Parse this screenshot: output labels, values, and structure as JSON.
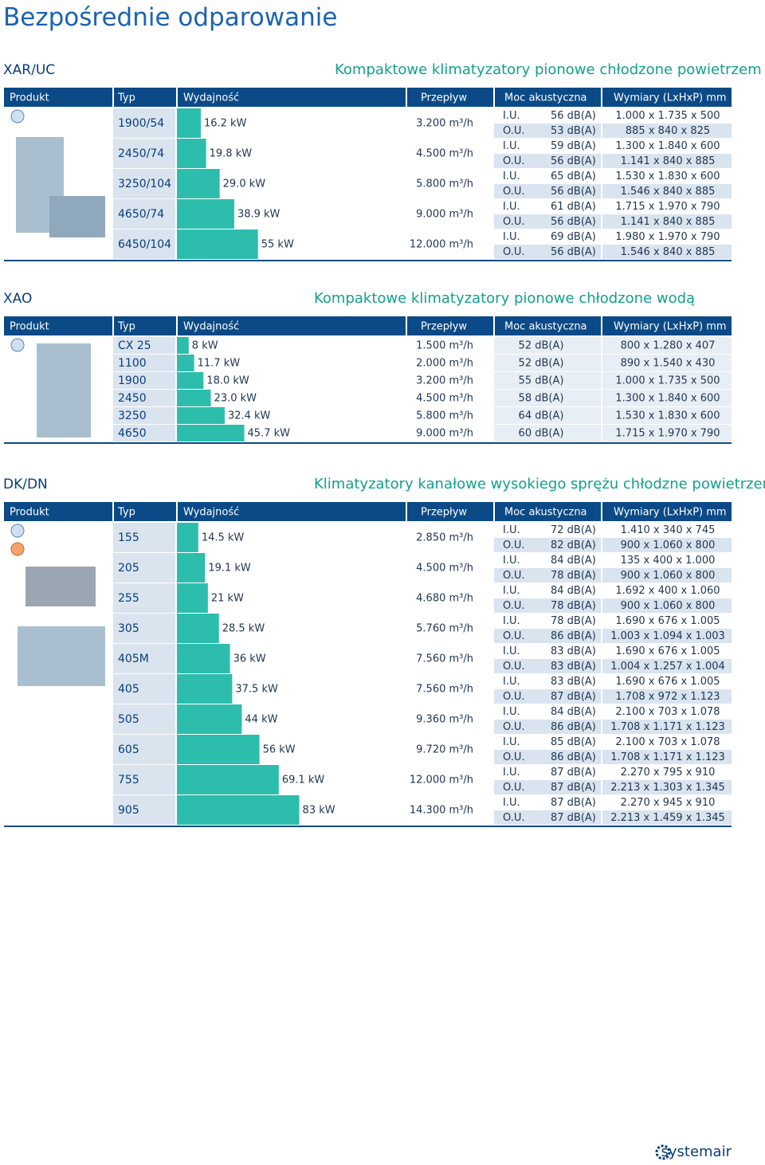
{
  "header": {
    "title": "Bezpośrednie odparowanie"
  },
  "sections": [
    {
      "code": "XAR/UC",
      "subtitle": "Kompaktowe klimatyzatory pionowe chłodzone powietrzem",
      "columns": [
        "Produkt",
        "Typ",
        "Wydajność",
        "Przepływ",
        "Moc akustyczna",
        "Wymiary  (LxHxP) mm"
      ],
      "rows": [
        {
          "typ": "1900/54",
          "capacity": "16.2 kW",
          "airflow": "3.200 m³/h",
          "lines": [
            {
              "unit": "I.U.",
              "sound": "56 dB(A)",
              "dims": "1.000 x 1.735 x 500"
            },
            {
              "unit": "O.U.",
              "sound": "53 dB(A)",
              "dims": "885 x 840 x 825"
            }
          ]
        },
        {
          "typ": "2450/74",
          "capacity": "19.8 kW",
          "airflow": "4.500 m³/h",
          "lines": [
            {
              "unit": "I.U.",
              "sound": "59 dB(A)",
              "dims": "1.300 x 1.840 x 600"
            },
            {
              "unit": "O.U.",
              "sound": "56 dB(A)",
              "dims": "1.141 x 840 x 885"
            }
          ]
        },
        {
          "typ": "3250/104",
          "capacity": "29.0 kW",
          "airflow": "5.800 m³/h",
          "lines": [
            {
              "unit": "I.U.",
              "sound": "65 dB(A)",
              "dims": "1.530 x 1.830 x 600"
            },
            {
              "unit": "O.U.",
              "sound": "56 dB(A)",
              "dims": "1.546 x 840 x 885"
            }
          ]
        },
        {
          "typ": "4650/74",
          "capacity": "38.9 kW",
          "airflow": "9.000 m³/h",
          "lines": [
            {
              "unit": "I.U.",
              "sound": "61 dB(A)",
              "dims": "1.715 x 1.970 x 790"
            },
            {
              "unit": "O.U.",
              "sound": "56 dB(A)",
              "dims": "1.141 x 840 x 885"
            }
          ]
        },
        {
          "typ": "6450/104",
          "capacity": "55 kW",
          "airflow": "12.000 m³/h",
          "lines": [
            {
              "unit": "I.U.",
              "sound": "69 dB(A)",
              "dims": "1.980 x 1.970 x 790"
            },
            {
              "unit": "O.U.",
              "sound": "56 dB(A)",
              "dims": "1.546 x 840 x 885"
            }
          ]
        }
      ]
    },
    {
      "code": "XAO",
      "subtitle": "Kompaktowe klimatyzatory pionowe chłodzone wodą",
      "columns": [
        "Produkt",
        "Typ",
        "Wydajność",
        "Przepływ",
        "Moc akustyczna",
        "Wymiary  (LxHxP) mm"
      ],
      "rows": [
        {
          "typ": "CX 25",
          "capacity": "8 kW",
          "airflow": "1.500 m³/h",
          "lines": [
            {
              "sound": "52 dB(A)",
              "dims": "800 x 1.280 x 407"
            }
          ]
        },
        {
          "typ": "1100",
          "capacity": "11.7 kW",
          "airflow": "2.000 m³/h",
          "lines": [
            {
              "sound": "52 dB(A)",
              "dims": "890 x 1.540 x 430"
            }
          ]
        },
        {
          "typ": "1900",
          "capacity": "18.0 kW",
          "airflow": "3.200 m³/h",
          "lines": [
            {
              "sound": "55 dB(A)",
              "dims": "1.000 x 1.735 x 500"
            }
          ]
        },
        {
          "typ": "2450",
          "capacity": "23.0 kW",
          "airflow": "4.500 m³/h",
          "lines": [
            {
              "sound": "58 dB(A)",
              "dims": "1.300 x 1.840 x 600"
            }
          ]
        },
        {
          "typ": "3250",
          "capacity": "32.4 kW",
          "airflow": "5.800 m³/h",
          "lines": [
            {
              "sound": "64 dB(A)",
              "dims": "1.530 x 1.830 x 600"
            }
          ]
        },
        {
          "typ": "4650",
          "capacity": "45.7 kW",
          "airflow": "9.000 m³/h",
          "lines": [
            {
              "sound": "60 dB(A)",
              "dims": "1.715 x 1.970 x 790"
            }
          ]
        }
      ]
    },
    {
      "code": "DK/DN",
      "subtitle": "Klimatyzatory kanałowe wysokiego sprężu chłodzne powietrzem",
      "columns": [
        "Produkt",
        "Typ",
        "Wydajność",
        "Przepływ",
        "Moc akustyczna",
        "Wymiary  (LxHxP) mm"
      ],
      "rows": [
        {
          "typ": "155",
          "capacity": "14.5 kW",
          "airflow": "2.850 m³/h",
          "lines": [
            {
              "unit": "I.U.",
              "sound": "72 dB(A)",
              "dims": "1.410 x 340 x 745"
            },
            {
              "unit": "O.U.",
              "sound": "82 dB(A)",
              "dims": "900 x 1.060 x 800"
            }
          ]
        },
        {
          "typ": "205",
          "capacity": "19.1 kW",
          "airflow": "4.500 m³/h",
          "lines": [
            {
              "unit": "I.U.",
              "sound": "84 dB(A)",
              "dims": "135 x 400 x 1.000"
            },
            {
              "unit": "O.U.",
              "sound": "78 dB(A)",
              "dims": "900 x 1.060 x 800"
            }
          ]
        },
        {
          "typ": "255",
          "capacity": "21 kW",
          "airflow": "4.680 m³/h",
          "lines": [
            {
              "unit": "I.U.",
              "sound": "84 dB(A)",
              "dims": "1.692 x 400 x 1.060"
            },
            {
              "unit": "O.U.",
              "sound": "78 dB(A)",
              "dims": "900 x 1.060 x 800"
            }
          ]
        },
        {
          "typ": "305",
          "capacity": "28.5 kW",
          "airflow": "5.760 m³/h",
          "lines": [
            {
              "unit": "I.U.",
              "sound": "78 dB(A)",
              "dims": "1.690 x 676 x 1.005"
            },
            {
              "unit": "O.U.",
              "sound": "86 dB(A)",
              "dims": "1.003 x 1.094 x 1.003"
            }
          ]
        },
        {
          "typ": "405M",
          "capacity": "36 kW",
          "airflow": "7.560 m³/h",
          "lines": [
            {
              "unit": "I.U.",
              "sound": "83 dB(A)",
              "dims": "1.690 x 676 x 1.005"
            },
            {
              "unit": "O.U.",
              "sound": "83 dB(A)",
              "dims": "1.004 x 1.257 x 1.004"
            }
          ]
        },
        {
          "typ": "405",
          "capacity": "37.5 kW",
          "airflow": "7.560 m³/h",
          "lines": [
            {
              "unit": "I.U.",
              "sound": "83 dB(A)",
              "dims": "1.690 x 676 x 1.005"
            },
            {
              "unit": "O.U.",
              "sound": "87 dB(A)",
              "dims": "1.708 x 972 x 1.123"
            }
          ]
        },
        {
          "typ": "505",
          "capacity": "44 kW",
          "airflow": "9.360 m³/h",
          "lines": [
            {
              "unit": "I.U.",
              "sound": "84 dB(A)",
              "dims": "2.100 x 703 x 1.078"
            },
            {
              "unit": "O.U.",
              "sound": "86 dB(A)",
              "dims": "1.708 x 1.171 x 1.123"
            }
          ]
        },
        {
          "typ": "605",
          "capacity": "56 kW",
          "airflow": "9.720 m³/h",
          "lines": [
            {
              "unit": "I.U.",
              "sound": "85 dB(A)",
              "dims": "2.100 x 703 x 1.078"
            },
            {
              "unit": "O.U.",
              "sound": "86 dB(A)",
              "dims": "1.708 x 1.171 x 1.123"
            }
          ]
        },
        {
          "typ": "755",
          "capacity": "69.1 kW",
          "airflow": "12.000 m³/h",
          "lines": [
            {
              "unit": "I.U.",
              "sound": "87 dB(A)",
              "dims": "2.270 x 795 x 910"
            },
            {
              "unit": "O.U.",
              "sound": "87 dB(A)",
              "dims": "2.213 x 1.303 x 1.345"
            }
          ]
        },
        {
          "typ": "905",
          "capacity": "83 kW",
          "airflow": "14.300 m³/h",
          "lines": [
            {
              "unit": "I.U.",
              "sound": "87 dB(A)",
              "dims": "2.270 x 945 x 910"
            },
            {
              "unit": "O.U.",
              "sound": "87 dB(A)",
              "dims": "2.213 x 1.459 x 1.345"
            }
          ]
        }
      ]
    }
  ],
  "footer": {
    "logo": "systemair"
  }
}
